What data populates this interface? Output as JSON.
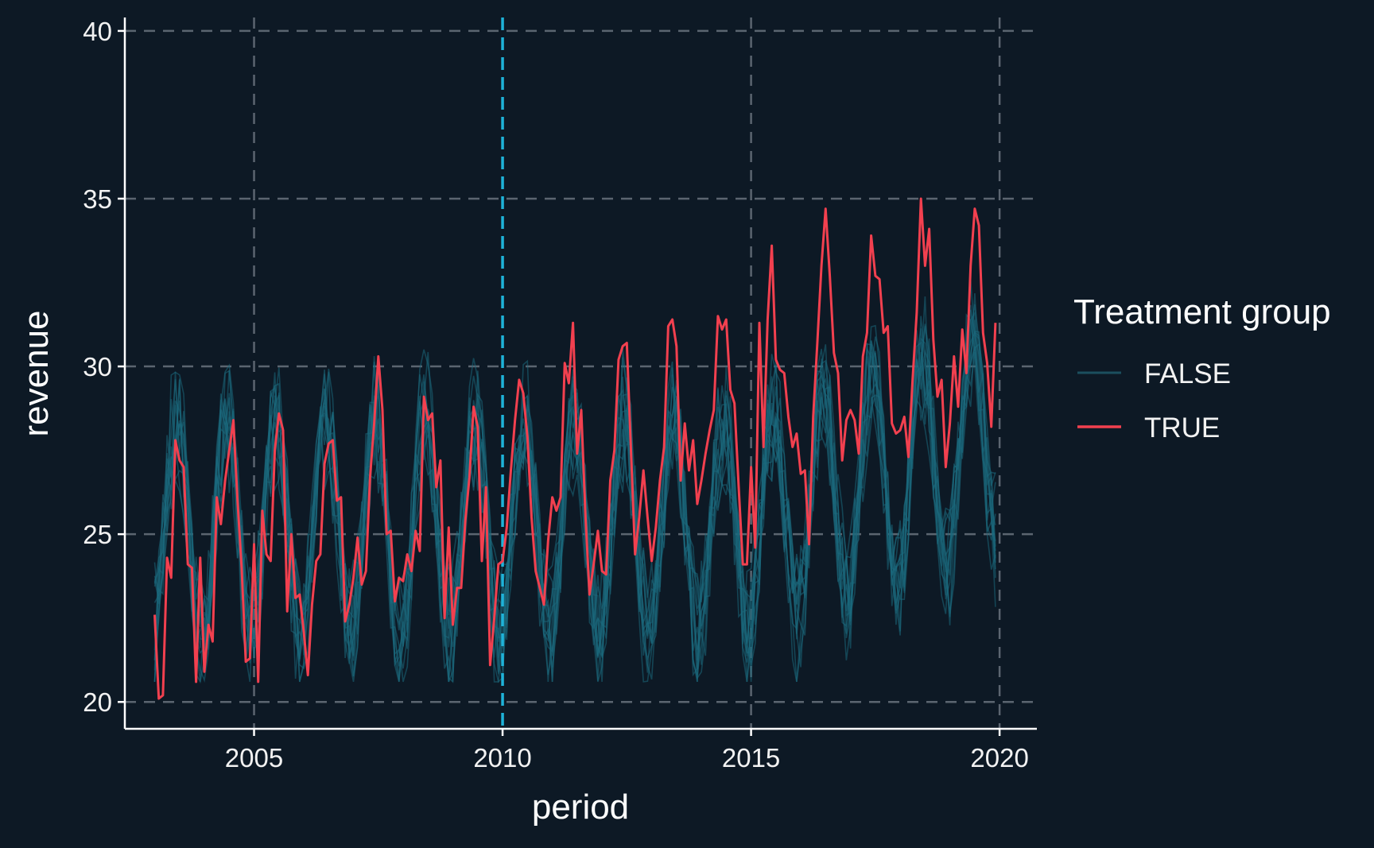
{
  "chart_data": {
    "type": "line",
    "title": "",
    "xlabel": "period",
    "ylabel": "revenue",
    "xlim": [
      2002.4,
      2020.75
    ],
    "ylim": [
      19.2,
      40.4
    ],
    "x_ticks": [
      "2005",
      "2010",
      "2015",
      "2020"
    ],
    "y_ticks": [
      "20",
      "25",
      "30",
      "35",
      "40"
    ],
    "grid": "dashed major gridlines on both axes",
    "reference_line": {
      "x": 2010,
      "color": "#1fb3d9",
      "style": "dashed"
    },
    "background": "#0d1925",
    "legend": {
      "title": "Treatment group",
      "position": "right",
      "entries": [
        {
          "label": "FALSE",
          "color": "#1b6a7d"
        },
        {
          "label": "TRUE",
          "color": "#f2404f"
        }
      ]
    },
    "series": [
      {
        "name": "TRUE",
        "color": "#f2404f",
        "x_start": 2003.0,
        "x_step": 0.0833333,
        "values": [
          22.6,
          20.1,
          20.2,
          24.3,
          23.7,
          27.8,
          27.2,
          27.0,
          24.1,
          24.0,
          20.6,
          24.3,
          20.9,
          22.3,
          21.8,
          26.1,
          25.3,
          26.6,
          27.5,
          28.4,
          26.0,
          24.0,
          21.2,
          21.3,
          24.7,
          20.6,
          25.7,
          24.4,
          24.2,
          27.5,
          28.6,
          28.1,
          22.7,
          25.0,
          23.1,
          23.2,
          22.1,
          20.8,
          22.9,
          24.2,
          24.4,
          27.1,
          27.7,
          27.8,
          26.0,
          26.1,
          22.4,
          22.9,
          23.7,
          24.9,
          23.5,
          23.9,
          26.7,
          28.3,
          30.3,
          28.7,
          25.0,
          25.1,
          23.0,
          23.7,
          23.6,
          24.4,
          23.9,
          25.1,
          24.5,
          29.1,
          28.4,
          28.6,
          26.4,
          27.2,
          22.5,
          25.2,
          22.3,
          23.4,
          23.4,
          25.4,
          26.7,
          28.8,
          28.2,
          24.2,
          26.4,
          21.1,
          22.5,
          24.1,
          24.2,
          25.2,
          26.9,
          28.4,
          29.6,
          29.2,
          27.9,
          25.5,
          23.9,
          23.4,
          22.9,
          24.8,
          26.1,
          25.7,
          26.1,
          30.1,
          29.5,
          31.3,
          27.4,
          28.7,
          25.6,
          23.2,
          24.1,
          25.1,
          23.9,
          23.8,
          26.6,
          27.5,
          30.2,
          30.6,
          30.7,
          27.5,
          24.4,
          25.5,
          26.9,
          25.5,
          24.2,
          25.2,
          26.6,
          27.6,
          31.2,
          31.4,
          30.6,
          26.6,
          28.3,
          26.9,
          27.8,
          25.9,
          26.6,
          27.4,
          28.1,
          28.7,
          31.5,
          31.1,
          31.4,
          29.3,
          28.9,
          26.4,
          24.1,
          24.1,
          27.0,
          24.6,
          31.3,
          27.6,
          31.4,
          33.6,
          30.2,
          29.9,
          29.8,
          28.5,
          27.6,
          28.0,
          26.8,
          26.9,
          24.7,
          28.5,
          30.7,
          33.0,
          34.7,
          32.7,
          30.4,
          29.8,
          27.2,
          28.4,
          28.7,
          28.4,
          27.4,
          30.3,
          31.0,
          33.9,
          32.7,
          32.6,
          31.0,
          31.2,
          28.3,
          28.0,
          28.1,
          28.5,
          27.3,
          29.6,
          31.6,
          35.0,
          33.0,
          34.1,
          30.8,
          29.1,
          29.6,
          27.0,
          28.3,
          30.3,
          28.8,
          31.1,
          29.8,
          33.0,
          34.7,
          34.2,
          31.0,
          30.1,
          28.2,
          31.3
        ]
      }
    ],
    "background_series_group": "FALSE",
    "background_series_count": 14
  }
}
